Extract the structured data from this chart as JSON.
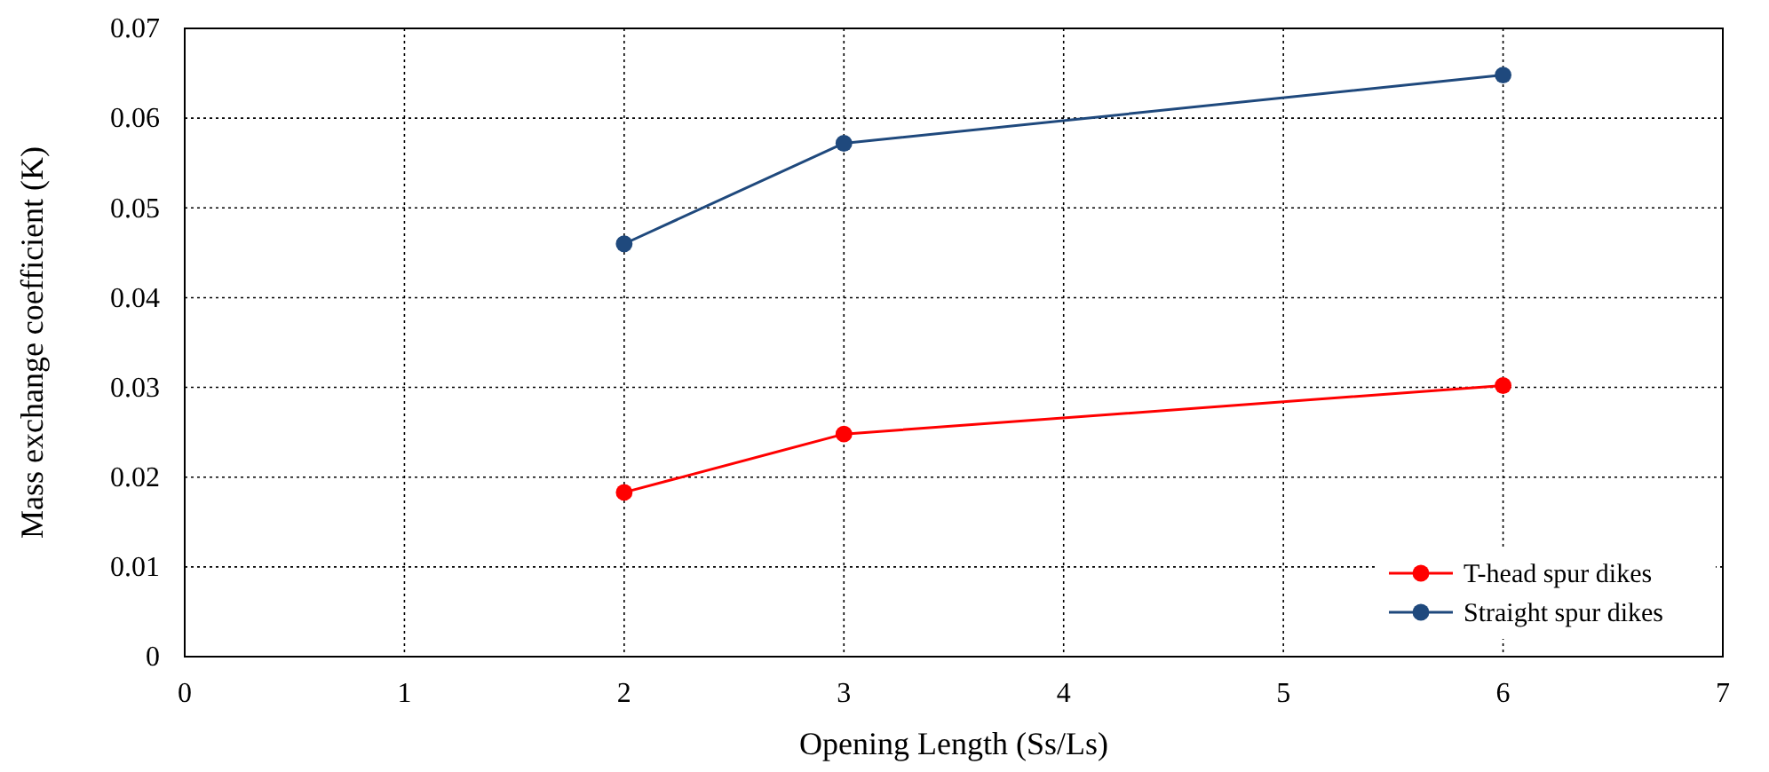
{
  "chart_data": {
    "type": "line",
    "xlabel": "Opening Length (Ss/Ls)",
    "ylabel": "Mass exchange coefficient (K)",
    "xlim": [
      0,
      7
    ],
    "xticks": [
      0,
      1,
      2,
      3,
      4,
      5,
      6,
      7
    ],
    "ylim": [
      0,
      0.07
    ],
    "yticks": [
      0,
      0.01,
      0.02,
      0.03,
      0.04,
      0.05,
      0.06,
      0.07
    ],
    "grid": true,
    "legend": "bottom right",
    "marker": "circle",
    "line_style": "solid",
    "series": [
      {
        "name": "T-head spur dikes",
        "color": "#ff0000",
        "x": [
          2,
          3,
          6
        ],
        "values": [
          0.0183,
          0.0248,
          0.0302
        ]
      },
      {
        "name": "Straight spur dikes",
        "color": "#1f497d",
        "x": [
          2,
          3,
          6
        ],
        "values": [
          0.046,
          0.0572,
          0.0648
        ]
      }
    ]
  }
}
